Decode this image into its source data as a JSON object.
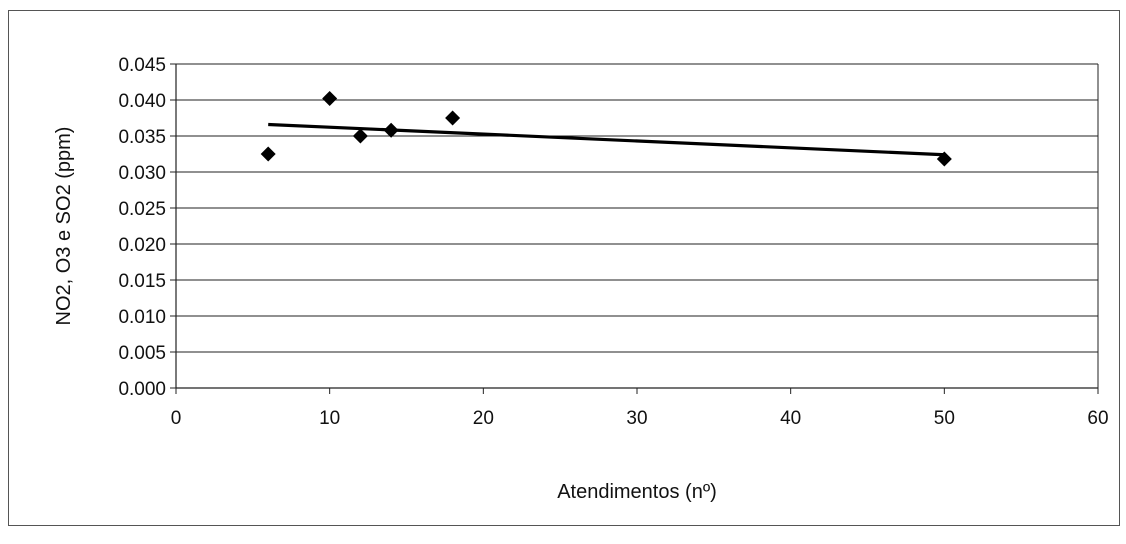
{
  "chart_data": {
    "type": "scatter",
    "title": "",
    "xlabel": "Atendimentos (nº)",
    "ylabel": "NO2, O3 e SO2 (ppm)",
    "xlim": [
      0,
      60
    ],
    "ylim": [
      0,
      0.045
    ],
    "x_ticks": [
      "0",
      "10",
      "20",
      "30",
      "40",
      "50",
      "60"
    ],
    "y_ticks": [
      "0.000",
      "0.005",
      "0.010",
      "0.015",
      "0.020",
      "0.025",
      "0.030",
      "0.035",
      "0.040",
      "0.045"
    ],
    "grid": "horizontal",
    "legend": "none",
    "series": [
      {
        "values": [
          {
            "x": 6,
            "y": 0.0325
          },
          {
            "x": 10,
            "y": 0.0402
          },
          {
            "x": 12,
            "y": 0.035
          },
          {
            "x": 14,
            "y": 0.0358
          },
          {
            "x": 18,
            "y": 0.0375
          },
          {
            "x": 50,
            "y": 0.0318
          }
        ],
        "marker": "diamond",
        "color": "#000000"
      }
    ],
    "trendline": {
      "type": "linear",
      "x": [
        6,
        50
      ],
      "y": [
        0.0366,
        0.0324
      ],
      "color": "#000000"
    }
  }
}
